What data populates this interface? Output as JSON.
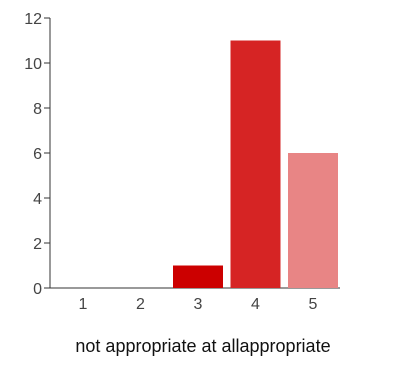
{
  "chart_data": {
    "type": "bar",
    "categories": [
      "1",
      "2",
      "3",
      "4",
      "5"
    ],
    "values": [
      0,
      0,
      1,
      11,
      6
    ],
    "colors": [
      "#cc0000",
      "#cc0000",
      "#cc0000",
      "#d62424",
      "#e88585"
    ],
    "ylim": [
      0,
      12
    ],
    "yticks": [
      "0",
      "2",
      "4",
      "6",
      "8",
      "10",
      "12"
    ],
    "grid": false,
    "legend": "none",
    "scale_labels": {
      "low": "not appropriate at all",
      "high": "appropriate"
    }
  }
}
